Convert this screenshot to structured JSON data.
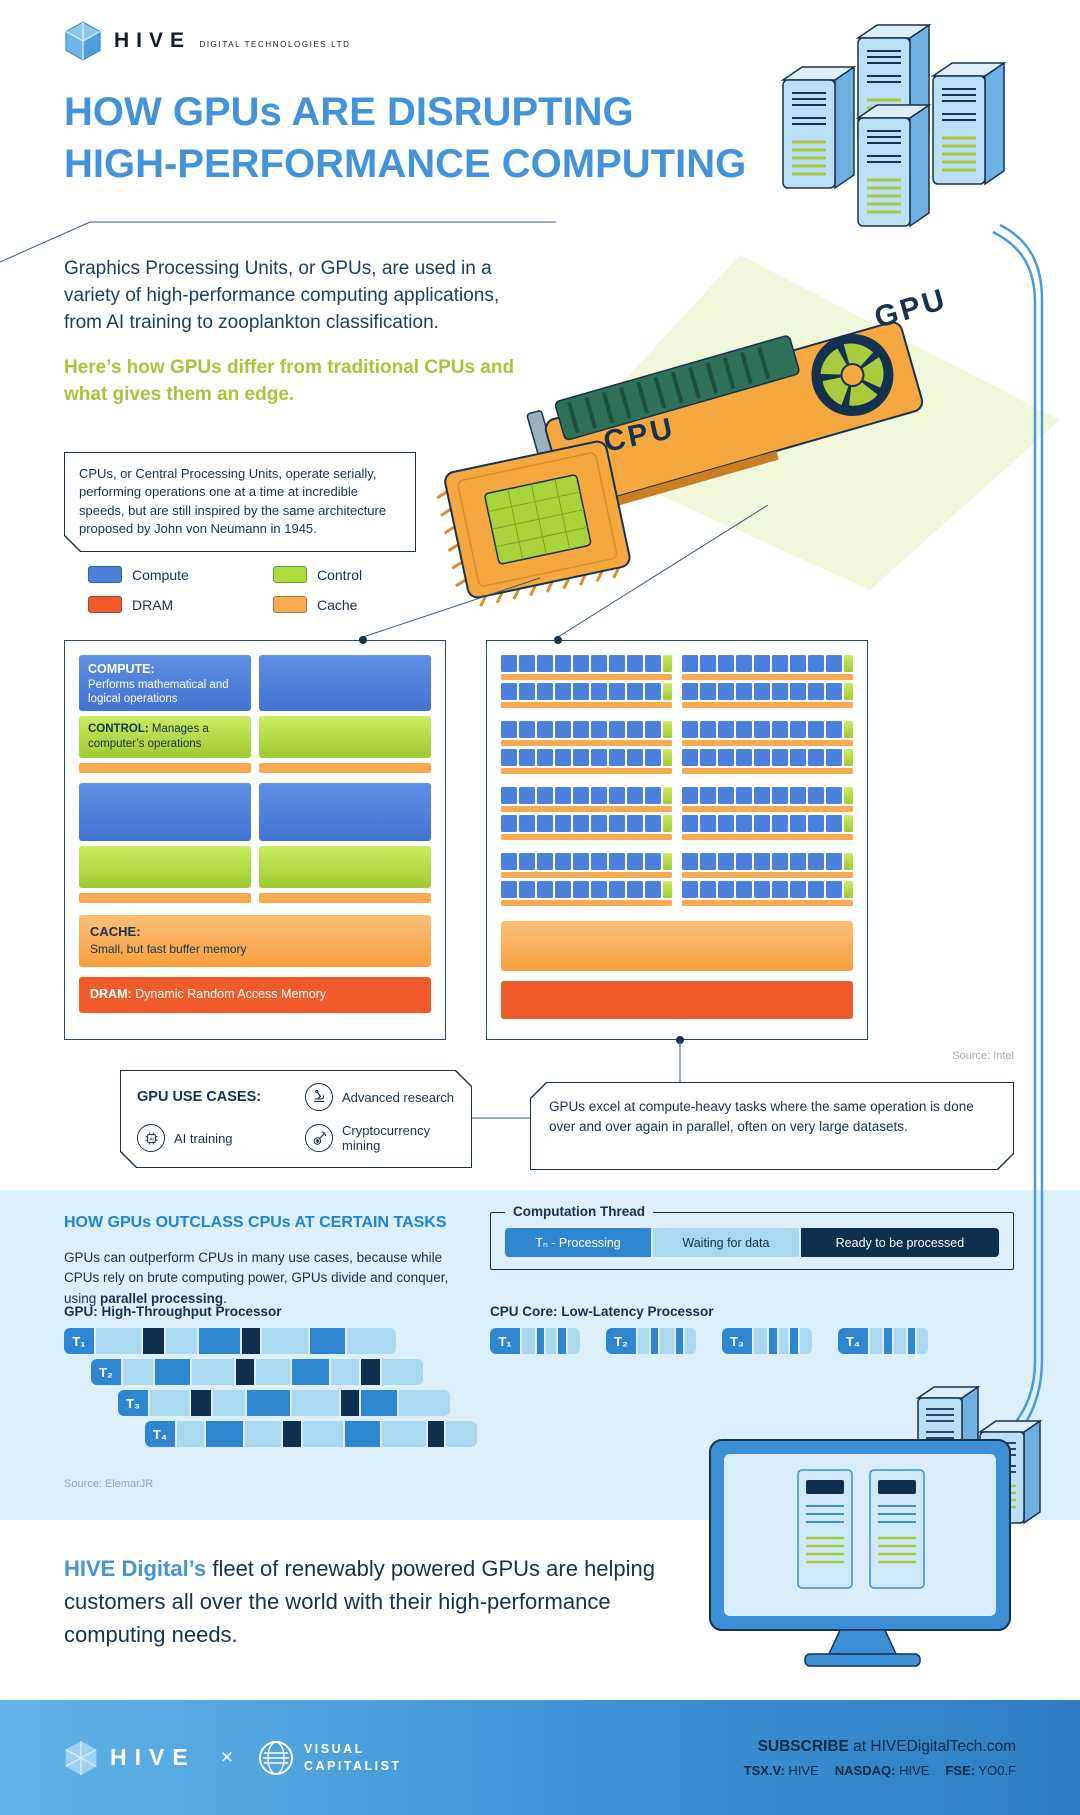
{
  "accent_colors": {
    "title_blue": "#4293D9",
    "highlight_green": "#A8C43C",
    "navy": "#16324F",
    "compute_blue": "#4B80DC",
    "control_green": "#AEDB3C",
    "dram_orange_red": "#F15B2B",
    "cache_orange": "#F9A94F",
    "section_bg": "#DCEFFA"
  },
  "brand": {
    "name": "HIVE",
    "subtitle": "DIGITAL TECHNOLOGIES LTD"
  },
  "title": {
    "line1": "HOW GPUs ARE DISRUPTING",
    "line2": "HIGH-PERFORMANCE COMPUTING"
  },
  "intro": {
    "paragraph": "Graphics Processing Units, or GPUs, are used in a variety of high-performance computing applications, from AI training to zooplankton classification.",
    "highlight": "Here’s how GPUs differ from traditional CPUs and what gives them an edge."
  },
  "illustration": {
    "cpu_label": "CPU",
    "gpu_label": "GPU"
  },
  "cpu_note": "CPUs, or Central Processing Units, operate serially, performing operations one at a time at incredible speeds, but are still inspired by the same architecture proposed by John von Neumann in 1945.",
  "legend": [
    {
      "label": "Compute",
      "color": "#4B80DC"
    },
    {
      "label": "Control",
      "color": "#AEDB3C"
    },
    {
      "label": "DRAM",
      "color": "#F15B2B"
    },
    {
      "label": "Cache",
      "color": "#F9A94F"
    }
  ],
  "cpu_diagram": {
    "compute_title": "COMPUTE:",
    "compute_desc": "Performs mathematical and logical operations",
    "control_title": "CONTROL:",
    "control_desc": " Manages a computer’s operations",
    "cache_title": "CACHE:",
    "cache_desc": "Small, but fast buffer memory",
    "dram_title": "DRAM:",
    "dram_desc": " Dynamic Random Access Memory"
  },
  "gpu_diagram": {
    "cluster_rows": 4,
    "cluster_cols": 2,
    "subrows_per_cluster": 2,
    "cells_per_row": 9
  },
  "source_intel": "Source: Intel",
  "use_cases": {
    "title": "GPU USE CASES:",
    "items": [
      {
        "icon": "research-icon",
        "label": "Advanced research"
      },
      {
        "icon": "ai-training-icon",
        "label": "AI training"
      },
      {
        "icon": "crypto-mining-icon",
        "label": "Cryptocurrency mining"
      }
    ]
  },
  "gpu_note": "GPUs excel at compute-heavy tasks where the same operation is done over and over again in parallel, often on very large datasets.",
  "outclass": {
    "heading": "HOW GPUs OUTCLASS CPUs AT CERTAIN TASKS",
    "body_prefix": "GPUs can outperform CPUs in many use cases, because while CPUs rely on brute computing power, GPUs divide and conquer, using ",
    "body_bold": "parallel processing",
    "body_suffix": ".",
    "thread_legend": {
      "title": "Computation Thread",
      "items": [
        {
          "type": "processing",
          "label": "Tₙ - Processing"
        },
        {
          "type": "waiting",
          "label": "Waiting for data"
        },
        {
          "type": "ready",
          "label": "Ready to be processed"
        }
      ]
    },
    "gpu_chart_title": "GPU: High-Throughput Processor",
    "cpu_chart_title": "CPU Core: Low-Latency Processor",
    "source": "Source: ElemarJR"
  },
  "gpu_threads": [
    {
      "label": "T₁",
      "segments": [
        [
          "w",
          2.2
        ],
        [
          "r",
          1.0
        ],
        [
          "w",
          1.5
        ],
        [
          "p",
          2.0
        ],
        [
          "r",
          0.9
        ],
        [
          "w",
          2.2
        ],
        [
          "p",
          1.7
        ],
        [
          "w",
          2.4
        ]
      ]
    },
    {
      "label": "T₂",
      "segments": [
        [
          "w",
          1.6
        ],
        [
          "p",
          1.9
        ],
        [
          "w",
          2.2
        ],
        [
          "r",
          1.0
        ],
        [
          "w",
          1.8
        ],
        [
          "p",
          2.0
        ],
        [
          "w",
          1.5
        ],
        [
          "r",
          1.0
        ],
        [
          "w",
          2.2
        ]
      ]
    },
    {
      "label": "T₃",
      "segments": [
        [
          "w",
          2.0
        ],
        [
          "r",
          1.0
        ],
        [
          "w",
          1.6
        ],
        [
          "p",
          2.2
        ],
        [
          "w",
          2.4
        ],
        [
          "r",
          0.9
        ],
        [
          "p",
          1.8
        ],
        [
          "w",
          2.6
        ]
      ]
    },
    {
      "label": "T₄",
      "segments": [
        [
          "w",
          1.5
        ],
        [
          "p",
          2.0
        ],
        [
          "w",
          2.0
        ],
        [
          "r",
          1.0
        ],
        [
          "w",
          2.2
        ],
        [
          "p",
          1.9
        ],
        [
          "w",
          2.4
        ],
        [
          "r",
          0.9
        ],
        [
          "w",
          1.7
        ]
      ]
    }
  ],
  "cpu_threads": [
    {
      "label": "T₁",
      "segments": [
        [
          "w",
          2.0
        ],
        [
          "p",
          1.2
        ],
        [
          "w",
          1.6
        ],
        [
          "p",
          1.2
        ],
        [
          "w",
          2.0
        ]
      ]
    },
    {
      "label": "T₂",
      "segments": [
        [
          "w",
          1.6
        ],
        [
          "p",
          1.2
        ],
        [
          "w",
          2.0
        ],
        [
          "p",
          1.2
        ],
        [
          "w",
          1.6
        ]
      ]
    },
    {
      "label": "T₃",
      "segments": [
        [
          "w",
          2.0
        ],
        [
          "p",
          1.2
        ],
        [
          "w",
          1.4
        ],
        [
          "p",
          1.2
        ],
        [
          "w",
          1.8
        ]
      ]
    },
    {
      "label": "T₄",
      "segments": [
        [
          "w",
          1.8
        ],
        [
          "p",
          1.2
        ],
        [
          "w",
          1.8
        ],
        [
          "p",
          1.2
        ],
        [
          "w",
          1.6
        ]
      ]
    }
  ],
  "closing": {
    "highlight": "HIVE Digital’s",
    "text": " fleet of renewably powered GPUs are helping customers all over the world with their high-performance computing needs."
  },
  "footer": {
    "brand": "HIVE",
    "cross": "✕",
    "partner_line1": "VISUAL",
    "partner_line2": "CAPITALIST",
    "subscribe_bold": "SUBSCRIBE",
    "subscribe_rest": " at HIVEDigitalTech.com",
    "tickers": [
      {
        "label": "TSX.V:",
        "value": "HIVE"
      },
      {
        "label": "NASDAQ:",
        "value": "HIVE"
      },
      {
        "label": "FSE:",
        "value": "YO0.F"
      }
    ]
  }
}
